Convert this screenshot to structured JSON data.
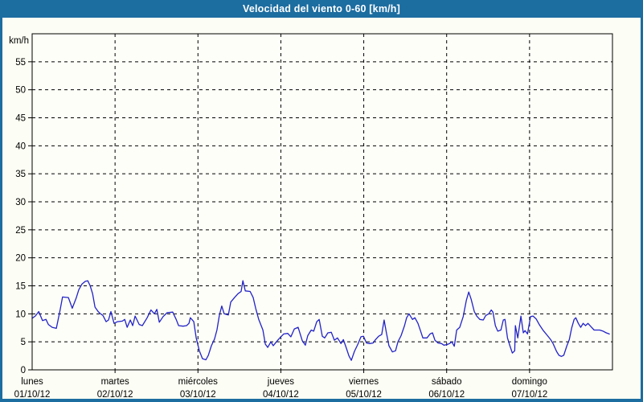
{
  "window": {
    "title": "Velocidad del viento 0-60 [km/h]"
  },
  "colors": {
    "title_bar": "#1c6da0",
    "title_text": "#ffffff",
    "frame_border": "#1c6da0",
    "background": "#fcfdf4",
    "plot_background": "#fdfef8",
    "grid": "#000000",
    "axis": "#000000",
    "line": "#2222c6",
    "label_text": "#000000"
  },
  "chart_data": {
    "type": "line",
    "title": "Velocidad del viento 0-60 [km/h]",
    "xlabel": "",
    "ylabel": "km/h",
    "ylim": [
      0,
      60
    ],
    "xlim_hours": [
      0,
      168
    ],
    "grid": "dashed",
    "legend": "none",
    "ytick_labels": [
      0,
      5,
      10,
      15,
      20,
      25,
      30,
      35,
      40,
      45,
      50,
      55
    ],
    "x_days": [
      {
        "name": "lunes",
        "date": "01/10/12"
      },
      {
        "name": "martes",
        "date": "02/10/12"
      },
      {
        "name": "miércoles",
        "date": "03/10/12"
      },
      {
        "name": "jueves",
        "date": "04/10/12"
      },
      {
        "name": "viernes",
        "date": "05/10/12"
      },
      {
        "name": "sábado",
        "date": "06/10/12"
      },
      {
        "name": "domingo",
        "date": "07/10/12"
      }
    ],
    "series": [
      {
        "name": "velocidad del viento",
        "unit": "km/h",
        "color": "#2222c6",
        "points": [
          [
            0,
            9.2
          ],
          [
            0.9,
            9.6
          ],
          [
            1.9,
            10.4
          ],
          [
            3.0,
            8.8
          ],
          [
            4.0,
            9.0
          ],
          [
            4.7,
            8.1
          ],
          [
            5.8,
            7.6
          ],
          [
            7.0,
            7.4
          ],
          [
            8.1,
            10.7
          ],
          [
            8.8,
            13.0
          ],
          [
            10.5,
            12.9
          ],
          [
            11.6,
            11.0
          ],
          [
            12.8,
            12.9
          ],
          [
            13.5,
            14.3
          ],
          [
            14.4,
            15.3
          ],
          [
            15.4,
            15.8
          ],
          [
            16.1,
            15.9
          ],
          [
            16.8,
            15.0
          ],
          [
            17.5,
            13.6
          ],
          [
            18.2,
            11.2
          ],
          [
            19.1,
            10.4
          ],
          [
            19.8,
            10.0
          ],
          [
            20.5,
            9.7
          ],
          [
            21.4,
            8.6
          ],
          [
            22.1,
            8.9
          ],
          [
            22.8,
            10.4
          ],
          [
            23.7,
            8.3
          ],
          [
            24.7,
            8.6
          ],
          [
            26.1,
            8.7
          ],
          [
            26.8,
            9.0
          ],
          [
            27.5,
            7.6
          ],
          [
            28.4,
            8.9
          ],
          [
            29.1,
            7.9
          ],
          [
            29.8,
            9.6
          ],
          [
            31.0,
            8.1
          ],
          [
            31.9,
            7.9
          ],
          [
            33.3,
            9.3
          ],
          [
            34.4,
            10.7
          ],
          [
            35.4,
            10.0
          ],
          [
            36.1,
            10.8
          ],
          [
            36.8,
            8.5
          ],
          [
            37.9,
            9.5
          ],
          [
            39.1,
            10.2
          ],
          [
            40.7,
            10.3
          ],
          [
            41.7,
            9.0
          ],
          [
            42.4,
            7.9
          ],
          [
            43.7,
            7.8
          ],
          [
            44.7,
            7.9
          ],
          [
            45.4,
            8.3
          ],
          [
            45.8,
            9.3
          ],
          [
            46.8,
            8.6
          ],
          [
            47.5,
            5.7
          ],
          [
            48.4,
            3.4
          ],
          [
            49.3,
            2.0
          ],
          [
            50.3,
            1.8
          ],
          [
            51.0,
            2.6
          ],
          [
            51.9,
            4.3
          ],
          [
            52.8,
            5.5
          ],
          [
            53.5,
            7.1
          ],
          [
            54.2,
            9.7
          ],
          [
            54.9,
            11.4
          ],
          [
            55.6,
            10.0
          ],
          [
            56.8,
            9.8
          ],
          [
            57.5,
            12.1
          ],
          [
            58.6,
            12.9
          ],
          [
            59.6,
            13.6
          ],
          [
            60.5,
            14.0
          ],
          [
            61.0,
            15.9
          ],
          [
            61.7,
            14.1
          ],
          [
            63.1,
            14.0
          ],
          [
            64.0,
            12.9
          ],
          [
            64.7,
            11.0
          ],
          [
            65.6,
            9.0
          ],
          [
            66.8,
            7.1
          ],
          [
            67.5,
            4.6
          ],
          [
            68.2,
            4.0
          ],
          [
            69.1,
            5.0
          ],
          [
            69.8,
            4.3
          ],
          [
            70.7,
            5.0
          ],
          [
            71.7,
            5.7
          ],
          [
            72.8,
            6.4
          ],
          [
            74.0,
            6.5
          ],
          [
            74.9,
            5.9
          ],
          [
            75.9,
            7.3
          ],
          [
            77.0,
            7.6
          ],
          [
            78.2,
            5.2
          ],
          [
            79.1,
            4.4
          ],
          [
            79.8,
            6.1
          ],
          [
            80.8,
            7.1
          ],
          [
            81.5,
            6.9
          ],
          [
            82.4,
            8.6
          ],
          [
            83.1,
            9.0
          ],
          [
            84.0,
            6.0
          ],
          [
            84.7,
            5.7
          ],
          [
            85.6,
            6.6
          ],
          [
            86.6,
            6.7
          ],
          [
            87.5,
            5.3
          ],
          [
            88.4,
            5.7
          ],
          [
            89.4,
            4.7
          ],
          [
            90.1,
            5.4
          ],
          [
            91.0,
            3.8
          ],
          [
            91.7,
            2.5
          ],
          [
            92.4,
            1.7
          ],
          [
            93.3,
            3.3
          ],
          [
            94.3,
            4.6
          ],
          [
            95.2,
            5.9
          ],
          [
            95.9,
            6.0
          ],
          [
            96.8,
            4.8
          ],
          [
            97.7,
            4.7
          ],
          [
            98.7,
            4.8
          ],
          [
            99.4,
            5.4
          ],
          [
            100.3,
            6.0
          ],
          [
            101.2,
            6.3
          ],
          [
            101.9,
            8.9
          ],
          [
            102.6,
            6.5
          ],
          [
            103.3,
            4.3
          ],
          [
            104.3,
            3.2
          ],
          [
            105.2,
            3.4
          ],
          [
            105.9,
            5.0
          ],
          [
            106.8,
            6.1
          ],
          [
            107.8,
            7.9
          ],
          [
            108.4,
            9.3
          ],
          [
            109.1,
            10.0
          ],
          [
            110.1,
            9.0
          ],
          [
            110.8,
            9.3
          ],
          [
            111.7,
            8.3
          ],
          [
            112.4,
            7.0
          ],
          [
            113.1,
            5.7
          ],
          [
            114.3,
            5.7
          ],
          [
            115.2,
            6.4
          ],
          [
            115.9,
            6.6
          ],
          [
            116.6,
            5.3
          ],
          [
            117.5,
            4.8
          ],
          [
            118.5,
            4.7
          ],
          [
            119.2,
            4.4
          ],
          [
            120.1,
            4.5
          ],
          [
            120.8,
            4.7
          ],
          [
            121.5,
            5.0
          ],
          [
            122.2,
            4.2
          ],
          [
            122.9,
            7.1
          ],
          [
            123.8,
            7.6
          ],
          [
            124.8,
            9.5
          ],
          [
            125.7,
            12.4
          ],
          [
            126.4,
            13.9
          ],
          [
            127.1,
            12.6
          ],
          [
            128.0,
            10.4
          ],
          [
            128.7,
            9.6
          ],
          [
            129.6,
            9.0
          ],
          [
            130.6,
            8.9
          ],
          [
            131.3,
            9.7
          ],
          [
            132.2,
            10.0
          ],
          [
            132.9,
            10.7
          ],
          [
            133.4,
            10.3
          ],
          [
            134.1,
            7.9
          ],
          [
            134.8,
            6.9
          ],
          [
            135.7,
            7.1
          ],
          [
            136.4,
            8.9
          ],
          [
            136.9,
            9.0
          ],
          [
            137.6,
            5.7
          ],
          [
            138.3,
            4.3
          ],
          [
            139.0,
            3.0
          ],
          [
            139.7,
            3.4
          ],
          [
            139.9,
            7.9
          ],
          [
            140.6,
            5.7
          ],
          [
            141.5,
            9.6
          ],
          [
            142.2,
            6.6
          ],
          [
            142.7,
            7.0
          ],
          [
            143.4,
            6.4
          ],
          [
            144.3,
            9.5
          ],
          [
            145.0,
            9.6
          ],
          [
            145.9,
            9.1
          ],
          [
            146.9,
            8.0
          ],
          [
            148.0,
            7.0
          ],
          [
            149.2,
            6.1
          ],
          [
            150.1,
            5.4
          ],
          [
            150.8,
            4.7
          ],
          [
            151.8,
            3.3
          ],
          [
            152.5,
            2.6
          ],
          [
            153.2,
            2.4
          ],
          [
            153.9,
            2.6
          ],
          [
            154.8,
            4.3
          ],
          [
            155.5,
            5.4
          ],
          [
            156.2,
            7.5
          ],
          [
            156.9,
            9.0
          ],
          [
            157.4,
            9.3
          ],
          [
            158.1,
            8.3
          ],
          [
            158.8,
            7.6
          ],
          [
            159.5,
            8.3
          ],
          [
            160.2,
            7.9
          ],
          [
            160.9,
            8.3
          ],
          [
            161.8,
            7.7
          ],
          [
            162.7,
            7.1
          ],
          [
            164.3,
            7.1
          ],
          [
            165.3,
            6.9
          ],
          [
            166.2,
            6.6
          ],
          [
            167.1,
            6.4
          ]
        ]
      }
    ]
  }
}
